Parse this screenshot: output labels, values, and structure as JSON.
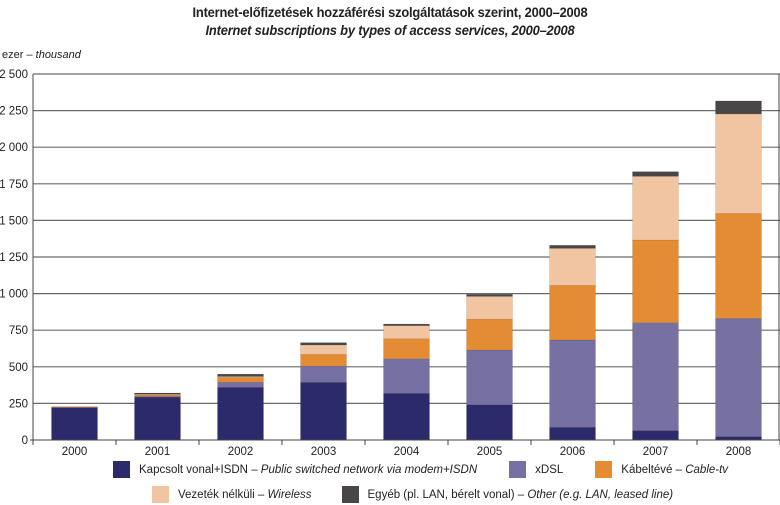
{
  "chart_data": {
    "type": "bar",
    "stacked": true,
    "title": "Internet-előfizetések hozzáférési szolgáltatások szerint, 2000–2008",
    "subtitle": "Internet subscriptions by types of access services, 2000–2008",
    "unit_label": "ezer",
    "unit_label_en": "thousand",
    "xlabel": "",
    "ylabel": "ezer – thousand",
    "ylim": [
      0,
      2500
    ],
    "yticks": [
      0,
      250,
      500,
      750,
      1000,
      1250,
      1500,
      1750,
      2000,
      2250,
      2500
    ],
    "ytick_labels": [
      "0",
      "250",
      "500",
      "750",
      "1 000",
      "1 250",
      "1 500",
      "1 750",
      "2 000",
      "2 250",
      "2 500"
    ],
    "grid": true,
    "legend_position": "bottom",
    "categories": [
      "2000",
      "2001",
      "2002",
      "2003",
      "2004",
      "2005",
      "2006",
      "2007",
      "2008"
    ],
    "series": [
      {
        "name": "Kapcsolt vonal+ISDN",
        "name_en": "Public switched network via modem+ISDN",
        "color": "#2b2a6b",
        "values": [
          224,
          295,
          360,
          394,
          319,
          241,
          87,
          64,
          23
        ]
      },
      {
        "name": "xDSL",
        "name_en": "",
        "color": "#7670a3",
        "values": [
          1,
          2,
          35,
          111,
          236,
          374,
          596,
          737,
          808
        ]
      },
      {
        "name": "Kábeltévé",
        "name_en": "Cable-tv",
        "color": "#e38c33",
        "values": [
          3,
          14,
          32,
          80,
          137,
          211,
          374,
          565,
          717
        ]
      },
      {
        "name": "Vezeték nélküli",
        "name_en": "Wireless",
        "color": "#f2c5a2",
        "values": [
          0,
          1,
          7,
          64,
          89,
          155,
          252,
          435,
          679
        ]
      },
      {
        "name": "Egyéb (pl. LAN, bérelt vonal)",
        "name_en": "Other (e.g. LAN, leased line)",
        "color": "#4a4646",
        "values": [
          0,
          9,
          16,
          16,
          11,
          14,
          21,
          32,
          89
        ]
      }
    ]
  }
}
